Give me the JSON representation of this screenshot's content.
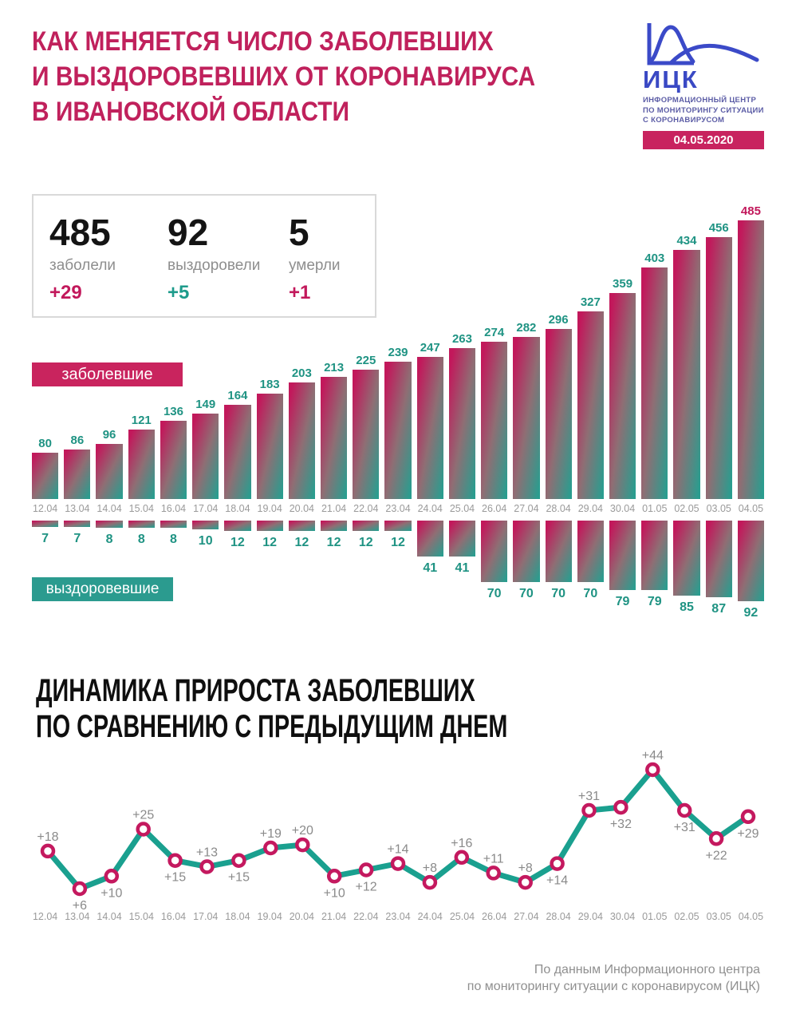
{
  "page": {
    "background": "#ffffff"
  },
  "header": {
    "title_lines": [
      "КАК МЕНЯЕТСЯ ЧИСЛО ЗАБОЛЕВШИХ",
      "И ВЫЗДОРОВЕВШИХ ОТ КОРОНАВИРУСА",
      "В ИВАНОВСКОЙ ОБЛАСТИ"
    ],
    "title_color": "#c0215c",
    "logo": {
      "abbr": "ИЦК",
      "abbr_color": "#3a49c4",
      "subtitle_lines": [
        "ИНФОРМАЦИОННЫЙ ЦЕНТР",
        "ПО МОНИТОРИНГУ СИТУАЦИИ",
        "С КОРОНАВИРУСОМ"
      ],
      "subtitle_color": "#5c5da6",
      "icon": "epidemic-curves-icon",
      "icon_color": "#3b4ac8",
      "date_badge": "04.05.2020",
      "date_badge_bg": "#c8235f"
    }
  },
  "stats": {
    "items": [
      {
        "value": "485",
        "label": "заболели",
        "delta": "+29",
        "delta_color": "#c2185b"
      },
      {
        "value": "92",
        "label": "выздоровели",
        "delta": "+5",
        "delta_color": "#1d9b8b"
      },
      {
        "value": "5",
        "label": "умерли",
        "delta": "+1",
        "delta_color": "#c2185b"
      }
    ]
  },
  "legend": {
    "infected_label": "заболевшие",
    "infected_bg": "#c9245e",
    "recovered_label": "выздоровевшие",
    "recovered_bg": "#2b9b8f"
  },
  "section2": {
    "title_lines": [
      "ДИНАМИКА ПРИРОСТА ЗАБОЛЕВШИХ",
      "ПО СРАВНЕНИЮ С ПРЕДЫДУЩИМ ДНЕМ"
    ]
  },
  "footer_lines": [
    "По данным Информационного центра",
    "по мониторингу ситуации с коронавирусом (ИЦК)"
  ],
  "chart_data": [
    {
      "type": "bar",
      "series_name": "заболевшие",
      "direction": "up",
      "categories": [
        "12.04",
        "13.04",
        "14.04",
        "15.04",
        "16.04",
        "17.04",
        "18.04",
        "19.04",
        "20.04",
        "21.04",
        "22.04",
        "23.04",
        "24.04",
        "25.04",
        "26.04",
        "27.04",
        "28.04",
        "29.04",
        "30.04",
        "01.05",
        "02.05",
        "03.05",
        "04.05"
      ],
      "values": [
        80,
        86,
        96,
        121,
        136,
        149,
        164,
        183,
        203,
        213,
        225,
        239,
        247,
        263,
        274,
        282,
        296,
        327,
        359,
        403,
        434,
        456,
        485
      ],
      "value_label_color": "#1f9383",
      "last_value_color": "#c2185b",
      "bar_gradient": [
        "#c2185b",
        "#8f6e74",
        "#2a9d8f"
      ],
      "ylim": [
        0,
        500
      ],
      "grid": false
    },
    {
      "type": "bar",
      "series_name": "выздоровевшие",
      "direction": "down",
      "categories": [
        "12.04",
        "13.04",
        "14.04",
        "15.04",
        "16.04",
        "17.04",
        "18.04",
        "19.04",
        "20.04",
        "21.04",
        "22.04",
        "23.04",
        "24.04",
        "25.04",
        "26.04",
        "27.04",
        "28.04",
        "29.04",
        "30.04",
        "01.05",
        "02.05",
        "03.05",
        "04.05"
      ],
      "values": [
        7,
        7,
        8,
        8,
        8,
        10,
        12,
        12,
        12,
        12,
        12,
        12,
        41,
        41,
        70,
        70,
        70,
        70,
        79,
        79,
        85,
        87,
        92
      ],
      "value_label_color": "#1f9383",
      "bar_gradient": [
        "#c2185b",
        "#8f6e74",
        "#2a9d8f"
      ],
      "ylim": [
        0,
        100
      ],
      "grid": false
    },
    {
      "type": "line",
      "series_name": "динамика прироста заболевших",
      "categories": [
        "12.04",
        "13.04",
        "14.04",
        "15.04",
        "16.04",
        "17.04",
        "18.04",
        "19.04",
        "20.04",
        "21.04",
        "22.04",
        "23.04",
        "24.04",
        "25.04",
        "26.04",
        "27.04",
        "28.04",
        "29.04",
        "30.04",
        "01.05",
        "02.05",
        "03.05",
        "04.05"
      ],
      "values": [
        18,
        6,
        10,
        25,
        15,
        13,
        15,
        19,
        20,
        10,
        12,
        14,
        8,
        16,
        11,
        8,
        14,
        31,
        32,
        44,
        31,
        22,
        29
      ],
      "point_labels": [
        "+18",
        "+6",
        "+10",
        "+25",
        "+15",
        "+13",
        "+15",
        "+19",
        "+20",
        "+10",
        "+12",
        "+14",
        "+8",
        "+16",
        "+11",
        "+8",
        "+14",
        "+31",
        "+32",
        "+44",
        "+31",
        "+22",
        "+29"
      ],
      "label_positions": [
        "above",
        "below",
        "below",
        "above",
        "below",
        "above",
        "below",
        "above",
        "above",
        "below",
        "below",
        "above",
        "above",
        "above",
        "above",
        "above",
        "below",
        "above",
        "below",
        "above",
        "below",
        "below",
        "below"
      ],
      "line_color": "#1aa08f",
      "point_fill": "#ffffff",
      "point_stroke": "#c4195f",
      "label_color": "#8a8a8a",
      "ylim": [
        0,
        50
      ],
      "grid": false
    }
  ]
}
